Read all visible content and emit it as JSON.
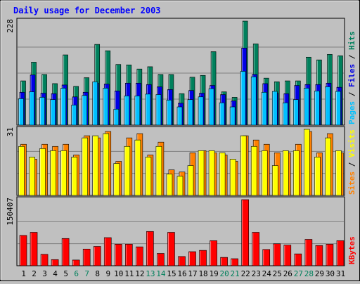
{
  "title": "Daily usage for December 2003",
  "colors": {
    "background": "#c0c0c0",
    "panel": "#c0c0c0",
    "grid": "#808080",
    "title": "#0000ff",
    "hits": "#00805c",
    "files": "#0000e6",
    "pages": "#00c0ff",
    "visits": "#ffff00",
    "sites": "#ff8000",
    "kbytes": "#ff0000",
    "weekend_label": "#00805c",
    "weekday_label": "#000000"
  },
  "chart_data": [
    {
      "type": "bar",
      "panel": "hits-files-pages",
      "y_max_label": "228",
      "ylim": [
        0,
        228
      ],
      "legend": [
        "Pages",
        "Files",
        "Hits"
      ],
      "categories": [
        "1",
        "2",
        "3",
        "4",
        "5",
        "6",
        "7",
        "8",
        "9",
        "10",
        "11",
        "12",
        "13",
        "14",
        "15",
        "16",
        "17",
        "18",
        "19",
        "20",
        "21",
        "22",
        "23",
        "24",
        "25",
        "26",
        "27",
        "28",
        "29",
        "30",
        "31"
      ],
      "series": [
        {
          "name": "Hits",
          "values": [
            97,
            138,
            111,
            91,
            154,
            85,
            104,
            177,
            163,
            133,
            132,
            123,
            128,
            111,
            111,
            69,
            105,
            109,
            161,
            73,
            61,
            228,
            178,
            103,
            95,
            97,
            97,
            149,
            143,
            155,
            152
          ]
        },
        {
          "name": "Files",
          "values": [
            72,
            110,
            70,
            69,
            88,
            62,
            72,
            92,
            90,
            75,
            92,
            92,
            89,
            84,
            78,
            48,
            76,
            70,
            87,
            67,
            53,
            169,
            111,
            91,
            70,
            69,
            87,
            89,
            89,
            92,
            83
          ]
        },
        {
          "name": "Pages",
          "values": [
            58,
            73,
            61,
            56,
            81,
            44,
            65,
            95,
            81,
            35,
            64,
            64,
            68,
            67,
            55,
            40,
            56,
            62,
            80,
            49,
            40,
            118,
            106,
            72,
            74,
            49,
            56,
            81,
            75,
            84,
            74
          ]
        }
      ]
    },
    {
      "type": "bar",
      "panel": "visits-sites",
      "y_max_label": "31",
      "ylim": [
        0,
        31
      ],
      "legend": [
        "Sites",
        "Visits"
      ],
      "categories": [
        "1",
        "2",
        "3",
        "4",
        "5",
        "6",
        "7",
        "8",
        "9",
        "10",
        "11",
        "12",
        "13",
        "14",
        "15",
        "16",
        "17",
        "18",
        "19",
        "20",
        "21",
        "22",
        "23",
        "24",
        "25",
        "26",
        "27",
        "28",
        "29",
        "30",
        "31"
      ],
      "series": [
        {
          "name": "Visits",
          "values": [
            23,
            18,
            22,
            21,
            21,
            18,
            27,
            28,
            29,
            15,
            23,
            26,
            18,
            23,
            10,
            9,
            14,
            21,
            21,
            20,
            17,
            28,
            23,
            21,
            14,
            21,
            21,
            31,
            18,
            27,
            21
          ]
        },
        {
          "name": "Sites",
          "values": [
            24,
            17,
            24,
            23,
            24,
            19,
            28,
            27,
            30,
            16,
            27,
            29,
            19,
            25,
            12,
            11,
            20,
            21,
            20,
            19,
            16,
            28,
            26,
            24,
            20,
            20,
            24,
            30,
            20,
            29,
            20
          ]
        }
      ]
    },
    {
      "type": "bar",
      "panel": "kbytes",
      "y_max_label": "150407",
      "ylim": [
        0,
        150407
      ],
      "legend": [
        "KBytes"
      ],
      "categories": [
        "1",
        "2",
        "3",
        "4",
        "5",
        "6",
        "7",
        "8",
        "9",
        "10",
        "11",
        "12",
        "13",
        "14",
        "15",
        "16",
        "17",
        "18",
        "19",
        "20",
        "21",
        "22",
        "23",
        "24",
        "25",
        "26",
        "27",
        "28",
        "29",
        "30",
        "31"
      ],
      "series": [
        {
          "name": "KBytes",
          "values": [
            69000,
            76000,
            26000,
            14000,
            62000,
            13000,
            38000,
            44000,
            64000,
            49000,
            49000,
            43000,
            78000,
            28000,
            76000,
            21000,
            32000,
            35000,
            57000,
            19000,
            16000,
            150407,
            76000,
            37000,
            50000,
            47000,
            27000,
            60000,
            46000,
            49000,
            57000
          ]
        }
      ]
    }
  ]
}
